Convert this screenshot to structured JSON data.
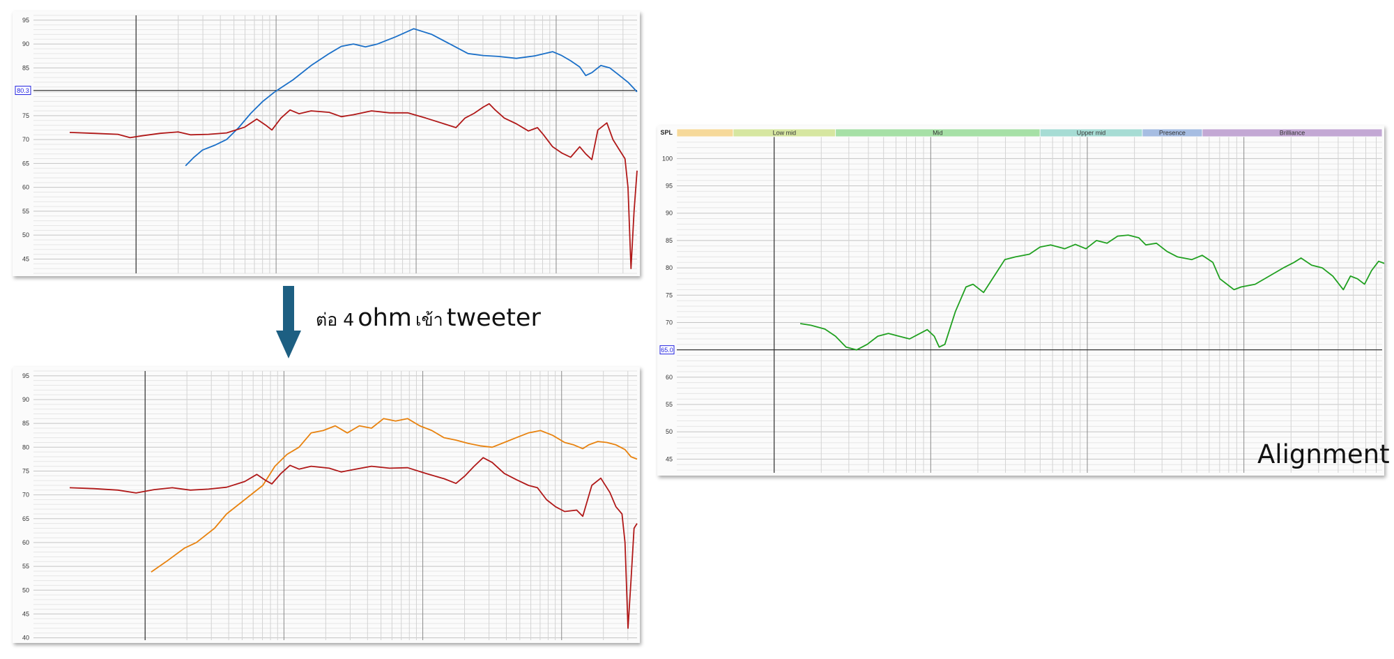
{
  "annotation": {
    "prefix": "ต่อ 4",
    "unit": "ohm",
    "middle": "เข้า",
    "target": "tweeter"
  },
  "alignment_label": "Alignment",
  "colors": {
    "blue": "#1a6fc8",
    "red": "#b01818",
    "orange": "#e8820e",
    "green": "#20a020",
    "arrow": "#1d5f82",
    "marker": "#2020e0"
  },
  "chart_data": [
    {
      "type": "line",
      "ylim": [
        42,
        96
      ],
      "yticks": [
        45,
        50,
        55,
        60,
        65,
        70,
        75,
        80,
        85,
        90,
        95
      ],
      "ref_value": 80.3,
      "ref_label": "80.3",
      "series": [
        {
          "color": "#1a6fc8",
          "values": [
            [
              0.252,
              64.5
            ],
            [
              0.265,
              66.2
            ],
            [
              0.28,
              67.8
            ],
            [
              0.3,
              68.8
            ],
            [
              0.32,
              70
            ],
            [
              0.34,
              72.5
            ],
            [
              0.36,
              75.5
            ],
            [
              0.38,
              78
            ],
            [
              0.4,
              80
            ],
            [
              0.43,
              82.5
            ],
            [
              0.46,
              85.5
            ],
            [
              0.49,
              88
            ],
            [
              0.51,
              89.5
            ],
            [
              0.53,
              90
            ],
            [
              0.55,
              89.4
            ],
            [
              0.57,
              90
            ],
            [
              0.6,
              91.5
            ],
            [
              0.63,
              93.2
            ],
            [
              0.66,
              92
            ],
            [
              0.69,
              90
            ],
            [
              0.72,
              88
            ],
            [
              0.745,
              87.6
            ],
            [
              0.77,
              87.4
            ],
            [
              0.8,
              87
            ],
            [
              0.83,
              87.5
            ],
            [
              0.86,
              88.4
            ],
            [
              0.875,
              87.6
            ],
            [
              0.89,
              86.5
            ],
            [
              0.905,
              85.2
            ],
            [
              0.915,
              83.4
            ],
            [
              0.925,
              84
            ],
            [
              0.94,
              85.5
            ],
            [
              0.955,
              85
            ],
            [
              0.97,
              83.5
            ],
            [
              0.985,
              82
            ],
            [
              1.0,
              80
            ]
          ]
        },
        {
          "color": "#b01818",
          "values": [
            [
              0.06,
              71.5
            ],
            [
              0.1,
              71.3
            ],
            [
              0.14,
              71.1
            ],
            [
              0.16,
              70.4
            ],
            [
              0.18,
              70.8
            ],
            [
              0.21,
              71.3
            ],
            [
              0.24,
              71.6
            ],
            [
              0.26,
              71
            ],
            [
              0.29,
              71.1
            ],
            [
              0.32,
              71.4
            ],
            [
              0.35,
              72.6
            ],
            [
              0.37,
              74.3
            ],
            [
              0.385,
              73
            ],
            [
              0.395,
              72
            ],
            [
              0.41,
              74.5
            ],
            [
              0.425,
              76.2
            ],
            [
              0.44,
              75.4
            ],
            [
              0.46,
              76
            ],
            [
              0.49,
              75.7
            ],
            [
              0.51,
              74.8
            ],
            [
              0.53,
              75.2
            ],
            [
              0.56,
              76
            ],
            [
              0.59,
              75.6
            ],
            [
              0.62,
              75.6
            ],
            [
              0.65,
              74.5
            ],
            [
              0.68,
              73.3
            ],
            [
              0.7,
              72.5
            ],
            [
              0.715,
              74.5
            ],
            [
              0.73,
              75.5
            ],
            [
              0.745,
              76.8
            ],
            [
              0.755,
              77.5
            ],
            [
              0.765,
              76.2
            ],
            [
              0.78,
              74.5
            ],
            [
              0.8,
              73.3
            ],
            [
              0.82,
              71.8
            ],
            [
              0.835,
              72.5
            ],
            [
              0.845,
              71
            ],
            [
              0.86,
              68.5
            ],
            [
              0.875,
              67.2
            ],
            [
              0.89,
              66.3
            ],
            [
              0.905,
              68.5
            ],
            [
              0.915,
              67
            ],
            [
              0.925,
              65.8
            ],
            [
              0.935,
              72
            ],
            [
              0.95,
              73.5
            ],
            [
              0.96,
              70
            ],
            [
              0.97,
              68
            ],
            [
              0.98,
              66
            ],
            [
              0.985,
              60
            ],
            [
              0.99,
              43
            ],
            [
              0.995,
              55
            ],
            [
              1.0,
              63.5
            ]
          ]
        }
      ]
    },
    {
      "type": "line",
      "ylim": [
        39.5,
        96
      ],
      "yticks": [
        40,
        45,
        50,
        55,
        60,
        65,
        70,
        75,
        80,
        85,
        90,
        95
      ],
      "series": [
        {
          "color": "#e8820e",
          "values": [
            [
              0.195,
              53.8
            ],
            [
              0.22,
              56
            ],
            [
              0.25,
              58.8
            ],
            [
              0.27,
              60
            ],
            [
              0.3,
              63
            ],
            [
              0.32,
              66
            ],
            [
              0.35,
              69
            ],
            [
              0.38,
              72
            ],
            [
              0.4,
              76
            ],
            [
              0.42,
              78.5
            ],
            [
              0.44,
              80
            ],
            [
              0.46,
              83
            ],
            [
              0.48,
              83.5
            ],
            [
              0.5,
              84.5
            ],
            [
              0.52,
              83
            ],
            [
              0.54,
              84.5
            ],
            [
              0.56,
              84
            ],
            [
              0.58,
              86
            ],
            [
              0.6,
              85.5
            ],
            [
              0.62,
              86
            ],
            [
              0.64,
              84.5
            ],
            [
              0.66,
              83.5
            ],
            [
              0.68,
              82
            ],
            [
              0.7,
              81.5
            ],
            [
              0.72,
              80.8
            ],
            [
              0.74,
              80.3
            ],
            [
              0.76,
              80
            ],
            [
              0.78,
              81
            ],
            [
              0.8,
              82
            ],
            [
              0.82,
              83
            ],
            [
              0.84,
              83.5
            ],
            [
              0.86,
              82.5
            ],
            [
              0.88,
              81
            ],
            [
              0.895,
              80.5
            ],
            [
              0.91,
              79.7
            ],
            [
              0.92,
              80.5
            ],
            [
              0.935,
              81.2
            ],
            [
              0.95,
              81
            ],
            [
              0.965,
              80.5
            ],
            [
              0.98,
              79.5
            ],
            [
              0.99,
              78
            ],
            [
              1.0,
              77.5
            ]
          ]
        },
        {
          "color": "#b01818",
          "values": [
            [
              0.06,
              71.5
            ],
            [
              0.1,
              71.3
            ],
            [
              0.14,
              71
            ],
            [
              0.17,
              70.4
            ],
            [
              0.2,
              71.1
            ],
            [
              0.23,
              71.5
            ],
            [
              0.26,
              71
            ],
            [
              0.29,
              71.2
            ],
            [
              0.32,
              71.6
            ],
            [
              0.35,
              72.8
            ],
            [
              0.37,
              74.3
            ],
            [
              0.385,
              73
            ],
            [
              0.395,
              72.3
            ],
            [
              0.41,
              74.5
            ],
            [
              0.425,
              76.2
            ],
            [
              0.44,
              75.4
            ],
            [
              0.46,
              76
            ],
            [
              0.49,
              75.6
            ],
            [
              0.51,
              74.8
            ],
            [
              0.53,
              75.3
            ],
            [
              0.56,
              76
            ],
            [
              0.59,
              75.6
            ],
            [
              0.62,
              75.7
            ],
            [
              0.65,
              74.5
            ],
            [
              0.68,
              73.4
            ],
            [
              0.7,
              72.4
            ],
            [
              0.715,
              74
            ],
            [
              0.73,
              76
            ],
            [
              0.745,
              77.8
            ],
            [
              0.76,
              76.8
            ],
            [
              0.78,
              74.5
            ],
            [
              0.8,
              73.2
            ],
            [
              0.82,
              72
            ],
            [
              0.835,
              71.5
            ],
            [
              0.85,
              69
            ],
            [
              0.865,
              67.5
            ],
            [
              0.88,
              66.5
            ],
            [
              0.9,
              66.8
            ],
            [
              0.91,
              65.5
            ],
            [
              0.925,
              72
            ],
            [
              0.94,
              73.5
            ],
            [
              0.955,
              70.5
            ],
            [
              0.965,
              67.5
            ],
            [
              0.975,
              66
            ],
            [
              0.98,
              60
            ],
            [
              0.985,
              42
            ],
            [
              0.99,
              52
            ],
            [
              0.995,
              63
            ],
            [
              1.0,
              64
            ]
          ]
        }
      ]
    },
    {
      "type": "line",
      "ylim": [
        42.5,
        104
      ],
      "yticks": [
        45,
        50,
        55,
        60,
        65,
        70,
        75,
        80,
        85,
        90,
        95,
        100
      ],
      "ylabel": "SPL",
      "ref_value": 65.0,
      "ref_label": "65.0",
      "bands": [
        {
          "label": "",
          "color": "#f6d99a",
          "from": 0.0,
          "to": 0.08
        },
        {
          "label": "Low mid",
          "color": "#d6e6a0",
          "from": 0.08,
          "to": 0.225
        },
        {
          "label": "Mid",
          "color": "#a6e0a6",
          "from": 0.225,
          "to": 0.515
        },
        {
          "label": "Upper mid",
          "color": "#a6dcd4",
          "from": 0.515,
          "to": 0.66
        },
        {
          "label": "Presence",
          "color": "#a6bde2",
          "from": 0.66,
          "to": 0.745
        },
        {
          "label": "Brilliance",
          "color": "#c3a8d4",
          "from": 0.745,
          "to": 1.0
        }
      ],
      "series": [
        {
          "color": "#20a020",
          "values": [
            [
              0.175,
              69.8
            ],
            [
              0.19,
              69.5
            ],
            [
              0.21,
              68.8
            ],
            [
              0.225,
              67.5
            ],
            [
              0.24,
              65.5
            ],
            [
              0.255,
              65
            ],
            [
              0.27,
              66
            ],
            [
              0.285,
              67.5
            ],
            [
              0.3,
              68
            ],
            [
              0.315,
              67.5
            ],
            [
              0.33,
              67
            ],
            [
              0.345,
              68
            ],
            [
              0.355,
              68.7
            ],
            [
              0.365,
              67.5
            ],
            [
              0.372,
              65.5
            ],
            [
              0.38,
              66
            ],
            [
              0.395,
              72
            ],
            [
              0.41,
              76.5
            ],
            [
              0.42,
              77
            ],
            [
              0.435,
              75.5
            ],
            [
              0.45,
              78.5
            ],
            [
              0.465,
              81.5
            ],
            [
              0.48,
              82
            ],
            [
              0.5,
              82.5
            ],
            [
              0.515,
              83.8
            ],
            [
              0.53,
              84.2
            ],
            [
              0.55,
              83.5
            ],
            [
              0.565,
              84.3
            ],
            [
              0.58,
              83.5
            ],
            [
              0.595,
              85
            ],
            [
              0.61,
              84.5
            ],
            [
              0.625,
              85.8
            ],
            [
              0.64,
              86
            ],
            [
              0.655,
              85.5
            ],
            [
              0.665,
              84.2
            ],
            [
              0.68,
              84.5
            ],
            [
              0.695,
              83
            ],
            [
              0.71,
              82
            ],
            [
              0.73,
              81.5
            ],
            [
              0.745,
              82.3
            ],
            [
              0.76,
              81
            ],
            [
              0.77,
              78
            ],
            [
              0.78,
              77
            ],
            [
              0.79,
              76
            ],
            [
              0.8,
              76.5
            ],
            [
              0.82,
              77
            ],
            [
              0.84,
              78.5
            ],
            [
              0.86,
              80
            ],
            [
              0.875,
              81
            ],
            [
              0.885,
              81.8
            ],
            [
              0.9,
              80.5
            ],
            [
              0.915,
              80
            ],
            [
              0.93,
              78.5
            ],
            [
              0.945,
              76
            ],
            [
              0.955,
              78.5
            ],
            [
              0.965,
              78
            ],
            [
              0.975,
              77
            ],
            [
              0.985,
              79.5
            ],
            [
              0.995,
              81.2
            ],
            [
              1.01,
              80.5
            ],
            [
              1.025,
              79
            ],
            [
              1.04,
              77.5
            ],
            [
              1.05,
              76.5
            ]
          ]
        }
      ]
    }
  ]
}
